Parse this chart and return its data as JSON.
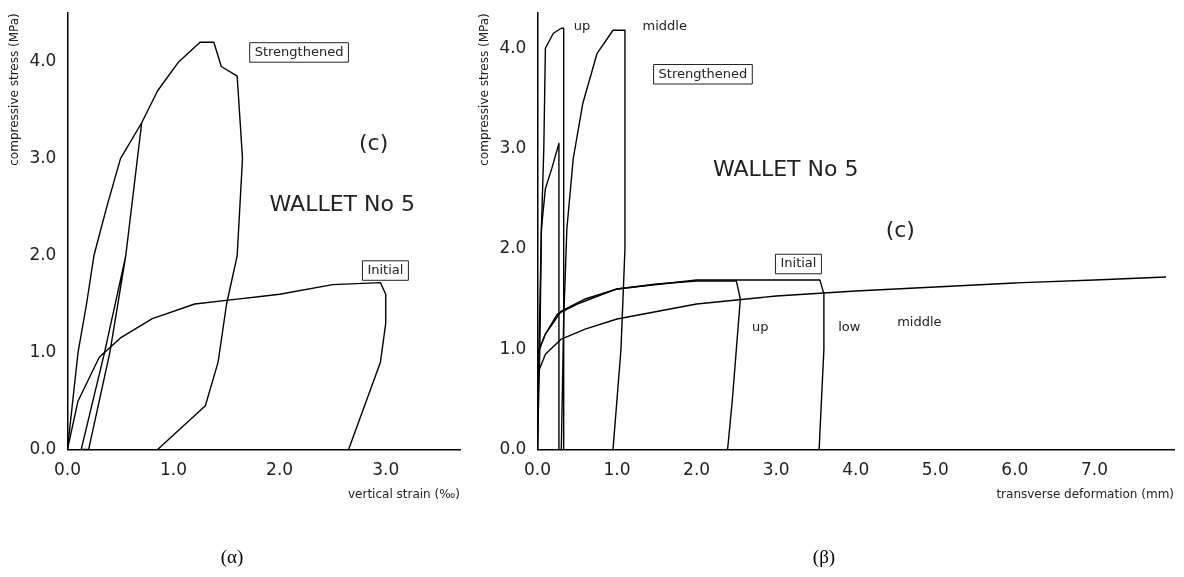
{
  "chart_data": [
    {
      "type": "line",
      "title": "(α)",
      "xlabel": "vertical strain (‰)",
      "ylabel": "compressive stress (MPa)",
      "xlim": [
        0,
        3.7
      ],
      "ylim": [
        0,
        4.5
      ],
      "xticks": [
        {
          "value": 0,
          "label": "0.0"
        },
        {
          "value": 1,
          "label": "1.0"
        },
        {
          "value": 2,
          "label": "2.0"
        },
        {
          "value": 3,
          "label": "3.0"
        }
      ],
      "yticks": [
        {
          "value": 0,
          "label": "0.0"
        },
        {
          "value": 1,
          "label": "1.0"
        },
        {
          "value": 2,
          "label": "2.0"
        },
        {
          "value": 3,
          "label": "3.0"
        },
        {
          "value": 4,
          "label": "4.0"
        }
      ],
      "marker": "none",
      "line_style": "solid",
      "grid": false,
      "legend": false,
      "series": [
        {
          "color": "#000000",
          "x": [
            0,
            0.05,
            0.1,
            0.18,
            0.25,
            0.37,
            0.5,
            0.7,
            0.55,
            0.35,
            0.13,
            0.2,
            0.4,
            0.55,
            0.7,
            0.85,
            1.05,
            1.25,
            1.38,
            1.45,
            1.6,
            1.65,
            1.6,
            1.5,
            1.42,
            1.3,
            0.85
          ],
          "values": [
            0,
            0.5,
            1.0,
            1.5,
            2.0,
            2.5,
            3.0,
            3.37,
            2.0,
            1.0,
            0,
            0,
            1.0,
            2.0,
            3.37,
            3.7,
            4.0,
            4.2,
            4.2,
            3.95,
            3.85,
            3.0,
            2.0,
            1.5,
            0.9,
            0.45,
            0
          ]
        },
        {
          "color": "#000000",
          "x": [
            0,
            0.1,
            0.3,
            0.5,
            0.8,
            1.2,
            1.6,
            2.0,
            2.5,
            2.95,
            3.0,
            3.0,
            2.95,
            2.65
          ],
          "values": [
            0,
            0.5,
            0.95,
            1.15,
            1.35,
            1.5,
            1.55,
            1.6,
            1.7,
            1.72,
            1.6,
            1.3,
            0.9,
            0
          ]
        }
      ],
      "annotations": [
        "(c)",
        "WALLET No 5",
        "Strengthened",
        "Initial"
      ]
    },
    {
      "type": "line",
      "title": "(β)",
      "xlabel": "transverse deformation (mm)",
      "ylabel": "compressive stress (MPa)",
      "xlim": [
        0,
        8.0
      ],
      "ylim": [
        0,
        4.35
      ],
      "xticks": [
        {
          "value": 0,
          "label": "0.0"
        },
        {
          "value": 1,
          "label": "1.0"
        },
        {
          "value": 2,
          "label": "2.0"
        },
        {
          "value": 3,
          "label": "3.0"
        },
        {
          "value": 4,
          "label": "4.0"
        },
        {
          "value": 5,
          "label": "5.0"
        },
        {
          "value": 6,
          "label": "6.0"
        },
        {
          "value": 7,
          "label": "7.0"
        }
      ],
      "yticks": [
        {
          "value": 0,
          "label": "0.0"
        },
        {
          "value": 1,
          "label": "1.0"
        },
        {
          "value": 2,
          "label": "2.0"
        },
        {
          "value": 3,
          "label": "3.0"
        },
        {
          "value": 4,
          "label": "4.0"
        }
      ],
      "marker": "none",
      "line_style": "solid",
      "grid": false,
      "legend": false,
      "series": [
        {
          "color": "#000000",
          "x": [
            0,
            0.02,
            0.05,
            0.08,
            0.1,
            0.2,
            0.3,
            0.33,
            0.33
          ],
          "values": [
            0,
            1.0,
            2.2,
            3.0,
            4.0,
            4.15,
            4.2,
            4.2,
            0
          ]
        },
        {
          "color": "#000000",
          "x": [
            0,
            0.03,
            0.05,
            0.1,
            0.18,
            0.27,
            0.27
          ],
          "values": [
            0,
            1.0,
            2.2,
            2.6,
            2.8,
            3.05,
            0
          ]
        },
        {
          "color": "#000000",
          "x": [
            0.3,
            0.33,
            0.37,
            0.45,
            0.57,
            0.75,
            0.95,
            1.1,
            1.1,
            1.05,
            0.95
          ],
          "values": [
            0,
            1.3,
            2.2,
            2.9,
            3.45,
            3.95,
            4.18,
            4.18,
            2.0,
            1.0,
            0
          ]
        },
        {
          "color": "#000000",
          "x": [
            0,
            0.1,
            0.25,
            0.5,
            1.0,
            1.5,
            2.0,
            2.5,
            2.55,
            2.5,
            2.45,
            2.39
          ],
          "values": [
            0.95,
            1.15,
            1.35,
            1.45,
            1.6,
            1.65,
            1.68,
            1.68,
            1.5,
            1.0,
            0.5,
            0
          ]
        },
        {
          "color": "#000000",
          "x": [
            0,
            0.1,
            0.3,
            0.6,
            1.0,
            2.0,
            3.0,
            3.55,
            3.6,
            3.6,
            3.57,
            3.54
          ],
          "values": [
            0.95,
            1.15,
            1.38,
            1.5,
            1.6,
            1.69,
            1.69,
            1.69,
            1.55,
            1.0,
            0.5,
            0
          ]
        },
        {
          "color": "#000000",
          "x": [
            0,
            0.1,
            0.3,
            0.6,
            1.0,
            2.0,
            3.0,
            4.0,
            5.0,
            6.0,
            7.0,
            7.9
          ],
          "values": [
            0.75,
            0.95,
            1.1,
            1.2,
            1.3,
            1.45,
            1.53,
            1.58,
            1.62,
            1.66,
            1.69,
            1.72
          ]
        }
      ],
      "annotations": [
        "WALLET No 5",
        "(c)",
        "up",
        "middle",
        "Strengthened",
        "Initial",
        "up",
        "low",
        "middle"
      ]
    }
  ]
}
